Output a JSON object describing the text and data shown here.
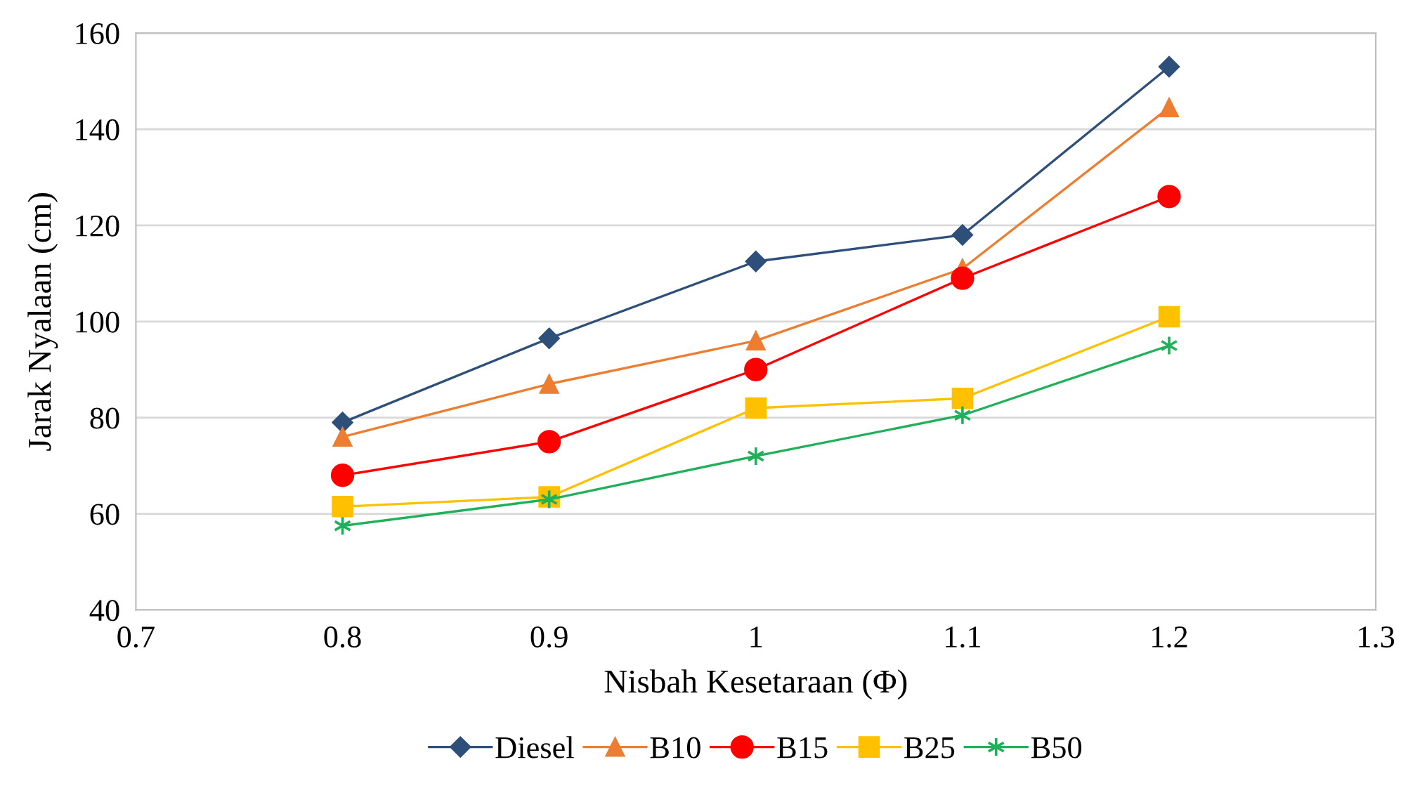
{
  "chart_data": {
    "type": "line",
    "xlabel": "Nisbah Kesetaraan (Φ)",
    "ylabel": "Jarak Nyalaan (cm)",
    "x": [
      0.8,
      0.9,
      1,
      1.1,
      1.2
    ],
    "series": [
      {
        "name": "Diesel",
        "color": "#2e4f7a",
        "marker": "diamond",
        "values": [
          79,
          96.5,
          112.5,
          118,
          153
        ]
      },
      {
        "name": "B10",
        "color": "#ed7d31",
        "marker": "triangle",
        "values": [
          76,
          87,
          96,
          111,
          144.5
        ]
      },
      {
        "name": "B15",
        "color": "#ff0000",
        "marker": "circle",
        "values": [
          68,
          75,
          90,
          109,
          126
        ]
      },
      {
        "name": "B25",
        "color": "#ffc000",
        "marker": "square",
        "values": [
          61.5,
          63.5,
          82,
          84,
          101
        ]
      },
      {
        "name": "B50",
        "color": "#21b05a",
        "marker": "cross",
        "values": [
          57.5,
          63,
          72,
          80.5,
          95
        ]
      }
    ],
    "xlim": [
      0.7,
      1.3
    ],
    "xticks": [
      0.7,
      0.8,
      0.9,
      1,
      1.1,
      1.2,
      1.3
    ],
    "ylim": [
      40,
      160
    ],
    "yticks": [
      40,
      60,
      80,
      100,
      120,
      140,
      160
    ],
    "grid": "y",
    "legend": "bottom",
    "line_style": "solid"
  }
}
